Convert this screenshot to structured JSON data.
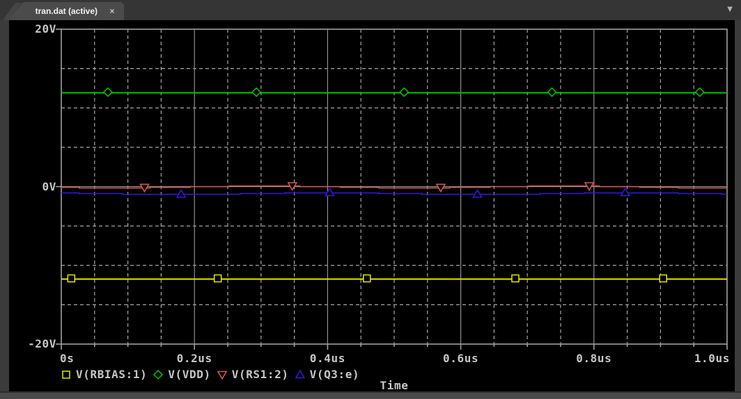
{
  "window": {
    "tab_title": "tran.dat (active)",
    "close_glyph": "×",
    "dropdown_glyph": "▼"
  },
  "chart_data": {
    "type": "line",
    "title": "",
    "xlabel": "Time",
    "xlim_us": [
      0,
      1
    ],
    "ylim": [
      -20,
      20
    ],
    "x_major_step_us": 0.2,
    "x_minor_step_us": 0.05,
    "y_major_step": 20,
    "y_minor_step": 5,
    "grid": {
      "on": true,
      "border_color": "#a0a0a0",
      "major_color": "#8f8f8f",
      "minor_color": "#a6a6a6",
      "minor_dash": "5 4",
      "text_color": "#c6c6c6"
    },
    "xticks": [
      {
        "label": "0s",
        "u": 0.0,
        "align": "left"
      },
      {
        "label": "0.2us",
        "u": 0.2,
        "align": "center"
      },
      {
        "label": "0.4us",
        "u": 0.4,
        "align": "center"
      },
      {
        "label": "0.6us",
        "u": 0.6,
        "align": "center"
      },
      {
        "label": "0.8us",
        "u": 0.8,
        "align": "center"
      },
      {
        "label": "1.0us",
        "u": 1.0,
        "align": "right"
      }
    ],
    "yticks": [
      {
        "label": "20V",
        "v": 20
      },
      {
        "label": "0V",
        "v": 0
      },
      {
        "label": "-20V",
        "v": -20
      }
    ],
    "legend_position": "bottom",
    "series": [
      {
        "name": "V(RBIAS:1)",
        "color": "#e6e600",
        "marker": "square",
        "base": -11.66,
        "ripple_amp": 0,
        "ripple_period_us": 1,
        "ripple_phase": 0,
        "markers_t_us": [
          0.015,
          0.235,
          0.459,
          0.682,
          0.904
        ]
      },
      {
        "name": "V(VDD)",
        "color": "#00c800",
        "marker": "diamond",
        "base": 12.0,
        "ripple_amp": 0,
        "ripple_period_us": 1,
        "ripple_phase": 0,
        "markers_t_us": [
          0.07,
          0.293,
          0.515,
          0.737,
          0.959
        ]
      },
      {
        "name": "V(RS1:2)",
        "color": "#d85454",
        "marker": "triangle-down",
        "base": 0.0,
        "ripple_amp": 0.12,
        "ripple_period_us": 0.45,
        "ripple_phase": 3.6,
        "markers_t_us": [
          0.125,
          0.347,
          0.57,
          0.793
        ]
      },
      {
        "name": "V(Q3:e)",
        "color": "#3c14dc",
        "marker": "triangle-up",
        "base": -0.85,
        "ripple_amp": 0.1,
        "ripple_period_us": 0.45,
        "ripple_phase": 2.2,
        "markers_t_us": [
          0.18,
          0.403,
          0.625,
          0.847
        ]
      }
    ]
  }
}
